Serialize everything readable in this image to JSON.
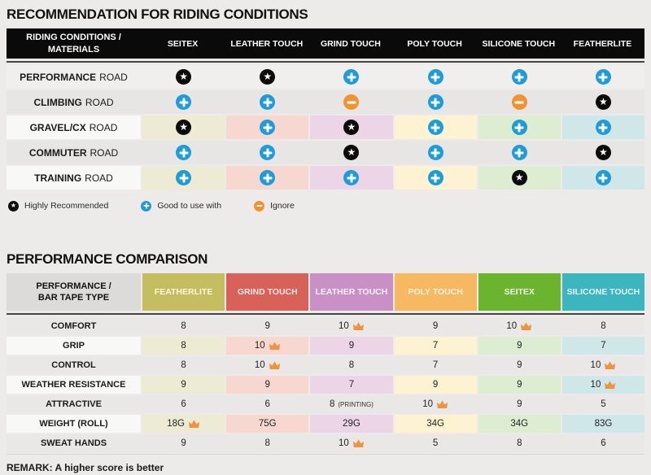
{
  "section1": {
    "title": "RECOMMENDATION FOR RIDING CONDITIONS",
    "table": {
      "corner_line1": "RIDING CONDITIONS /",
      "corner_line2": "MATERIALS",
      "columns": [
        "SEITEX",
        "LEATHER TOUCH",
        "GRIND TOUCH",
        "POLY TOUCH",
        "SILICONE TOUCH",
        "FEATHERLITE"
      ],
      "column_tints": [
        "#EDEBD4",
        "#F6D8D1",
        "#EDD5E8",
        "#FDF3D2",
        "#DCEDD1",
        "#D0E7EA"
      ],
      "rows": [
        {
          "condition": "PERFORMANCE",
          "suffix": "ROAD",
          "style": "light",
          "cells": [
            "star",
            "star",
            "plus",
            "plus",
            "plus",
            "plus"
          ]
        },
        {
          "condition": "CLIMBING",
          "suffix": "ROAD",
          "style": "gray",
          "cells": [
            "plus",
            "plus",
            "minus",
            "plus",
            "minus",
            "star"
          ]
        },
        {
          "condition": "GRAVEL/CX",
          "suffix": "ROAD",
          "style": "tinted",
          "cells": [
            "star",
            "plus",
            "star",
            "plus",
            "plus",
            "plus"
          ]
        },
        {
          "condition": "COMMUTER",
          "suffix": "ROAD",
          "style": "gray",
          "cells": [
            "plus",
            "plus",
            "star",
            "plus",
            "plus",
            "star"
          ]
        },
        {
          "condition": "TRAINING",
          "suffix": "ROAD",
          "style": "tinted",
          "cells": [
            "plus",
            "plus",
            "plus",
            "plus",
            "star",
            "plus"
          ]
        }
      ]
    },
    "legend": [
      {
        "icon": "star",
        "label": "Highly Recommended"
      },
      {
        "icon": "plus",
        "label": "Good to use with"
      },
      {
        "icon": "minus",
        "label": "Ignore"
      }
    ]
  },
  "section2": {
    "title": "PERFORMANCE COMPARISON",
    "table": {
      "corner_line1": "PERFORMANCE /",
      "corner_line2": "BAR TAPE TYPE",
      "columns": [
        {
          "name": "FEATHERLITE",
          "color": "#C4BE60",
          "text": "#FAF5DC",
          "tint": "#EDEBD4"
        },
        {
          "name": "GRIND TOUCH",
          "color": "#D8615A",
          "text": "#FBE7E3",
          "tint": "#F6D8D1"
        },
        {
          "name": "LEATHER TOUCH",
          "color": "#C890C5",
          "text": "#FCF0FA",
          "tint": "#EDD5E8"
        },
        {
          "name": "POLY TOUCH",
          "color": "#F6B962",
          "text": "#FDF2DF",
          "tint": "#FDF3D2"
        },
        {
          "name": "SEITEX",
          "color": "#6BB42F",
          "text": "#F0F8E4",
          "tint": "#DCEDD1"
        },
        {
          "name": "SILICONE TOUCH",
          "color": "#3CB5BF",
          "text": "#E4F6F7",
          "tint": "#D0E7EA"
        }
      ],
      "rows": [
        {
          "label": "COMFORT",
          "style": "gray",
          "cells": [
            {
              "v": "8"
            },
            {
              "v": "9"
            },
            {
              "v": "10",
              "crown": true
            },
            {
              "v": "9"
            },
            {
              "v": "10",
              "crown": true
            },
            {
              "v": "8"
            }
          ]
        },
        {
          "label": "GRIP",
          "style": "tinted",
          "cells": [
            {
              "v": "8"
            },
            {
              "v": "10",
              "crown": true
            },
            {
              "v": "9"
            },
            {
              "v": "7"
            },
            {
              "v": "9"
            },
            {
              "v": "7"
            }
          ]
        },
        {
          "label": "CONTROL",
          "style": "gray",
          "cells": [
            {
              "v": "8"
            },
            {
              "v": "10",
              "crown": true
            },
            {
              "v": "8"
            },
            {
              "v": "7"
            },
            {
              "v": "9"
            },
            {
              "v": "10",
              "crown": true
            }
          ]
        },
        {
          "label": "WEATHER RESISTANCE",
          "style": "tinted",
          "cells": [
            {
              "v": "9"
            },
            {
              "v": "9"
            },
            {
              "v": "7"
            },
            {
              "v": "9"
            },
            {
              "v": "9"
            },
            {
              "v": "10",
              "crown": true
            }
          ]
        },
        {
          "label": "ATTRACTIVE",
          "style": "gray",
          "cells": [
            {
              "v": "6"
            },
            {
              "v": "6"
            },
            {
              "v": "8",
              "note": "(PRINTING)"
            },
            {
              "v": "10",
              "crown": true
            },
            {
              "v": "9"
            },
            {
              "v": "5"
            }
          ]
        },
        {
          "label": "WEIGHT (ROLL)",
          "style": "tinted",
          "cells": [
            {
              "v": "18G",
              "crown": true
            },
            {
              "v": "75G"
            },
            {
              "v": "29G"
            },
            {
              "v": "34G"
            },
            {
              "v": "34G"
            },
            {
              "v": "83G"
            }
          ]
        },
        {
          "label": "SWEAT HANDS",
          "style": "gray",
          "cells": [
            {
              "v": "9"
            },
            {
              "v": "8"
            },
            {
              "v": "10",
              "crown": true
            },
            {
              "v": "5"
            },
            {
              "v": "8"
            },
            {
              "v": "6"
            }
          ]
        }
      ]
    },
    "remark": "REMARK: A higher score is better"
  },
  "icon_colors": {
    "star": "#0B0B0B",
    "plus": "#1E9CD8",
    "minus": "#F09330",
    "crown": "#F0923E"
  }
}
